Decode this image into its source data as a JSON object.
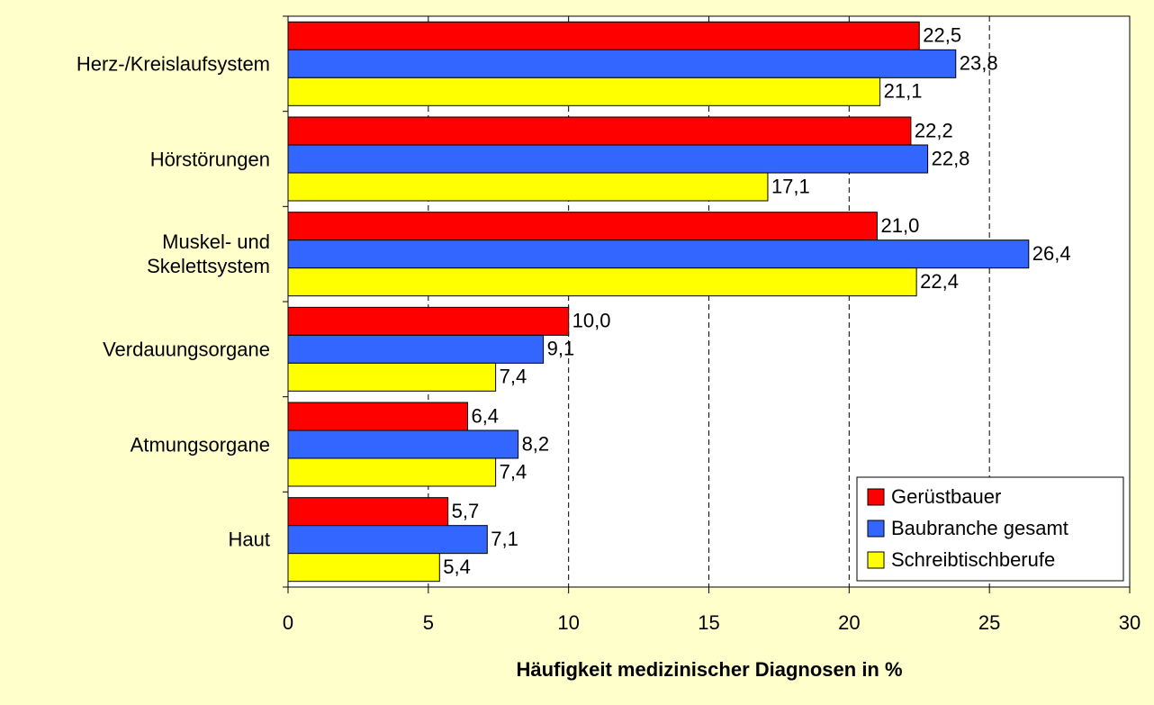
{
  "chart_data": {
    "type": "barh",
    "xlabel": "Häufigkeit medizinischer Diagnosen in %",
    "categories": [
      "Herz-/Kreislaufsystem",
      "Hörstörungen",
      "Muskel- und\nSkelettsystem",
      "Verdauungsorgane",
      "Atmungsorgane",
      "Haut"
    ],
    "series": [
      {
        "name": "Gerüstbauer",
        "color": "#FF0000",
        "values": [
          22.5,
          22.2,
          21.0,
          10.0,
          6.4,
          5.7
        ],
        "value_labels": [
          "22,5",
          "22,2",
          "21,0",
          "10,0",
          "6,4",
          "5,7"
        ]
      },
      {
        "name": "Baubranche gesamt",
        "color": "#3366FF",
        "values": [
          23.8,
          22.8,
          26.4,
          9.1,
          8.2,
          7.1
        ],
        "value_labels": [
          "23,8",
          "22,8",
          "26,4",
          "9,1",
          "8,2",
          "7,1"
        ]
      },
      {
        "name": "Schreibtischberufe",
        "color": "#FFFF00",
        "values": [
          21.1,
          17.1,
          22.4,
          7.4,
          7.4,
          5.4
        ],
        "value_labels": [
          "21,1",
          "17,1",
          "22,4",
          "7,4",
          "7,4",
          "5,4"
        ]
      }
    ],
    "xlim": [
      0,
      30
    ],
    "xticks": [
      0,
      5,
      10,
      15,
      20,
      25,
      30
    ],
    "grid": true,
    "legend": "lower right"
  }
}
